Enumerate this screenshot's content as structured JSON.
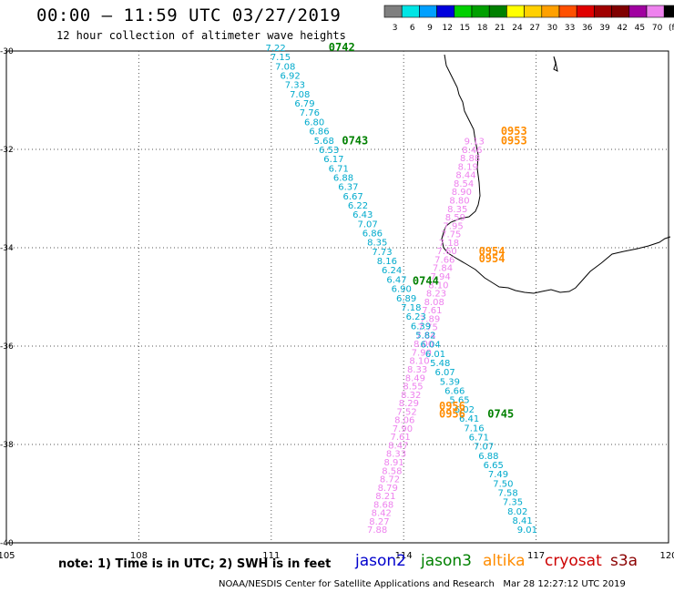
{
  "title": "00:00 — 11:59 UTC 03/27/2019",
  "subtitle": "12 hour collection of altimeter wave heights",
  "note": "note: 1) Time is in UTC; 2) SWH is in feet",
  "footer": "NOAA/NESDIS Center for Satellite Applications and Research   Mar 28 12:27:12 UTC 2019",
  "legend": {
    "labels": [
      "3",
      "6",
      "9",
      "12",
      "15",
      "18",
      "21",
      "24",
      "27",
      "30",
      "33",
      "36",
      "39",
      "42",
      "45",
      "70",
      "(ft)"
    ],
    "colors": [
      "#7f7f7f",
      "#00e5e5",
      "#00a0ff",
      "#0000dd",
      "#00d000",
      "#00a000",
      "#008000",
      "#ffff00",
      "#ffd000",
      "#ffa000",
      "#ff5000",
      "#e00000",
      "#a00000",
      "#800000",
      "#a000a0",
      "#ee82ee",
      "#000000"
    ]
  },
  "axes": {
    "lon_ticks": [
      "105",
      "108",
      "111",
      "114",
      "117",
      "120"
    ],
    "lat_ticks": [
      "-30",
      "-32",
      "-34",
      "-36",
      "-38",
      "-40"
    ]
  },
  "missions": [
    {
      "name": "jason2",
      "color": "#0000cc"
    },
    {
      "name": "jason3",
      "color": "#008000"
    },
    {
      "name": "altika",
      "color": "#ff8c00"
    },
    {
      "name": "cryosat",
      "color": "#cc0000"
    },
    {
      "name": "s3a",
      "color": "#8b0000"
    }
  ],
  "colors": {
    "jason3_track": "#00aacc",
    "s3a_track": "#ee82ee",
    "jason3_time": "#008000",
    "altika_time": "#ff8c00",
    "grid": "#555555",
    "coast": "#000000"
  },
  "jason3_track": {
    "start": [
      111.1,
      -30.0
    ],
    "end": [
      116.8,
      -39.8
    ],
    "values": [
      "7.22",
      "7.15",
      "7.08",
      "6.92",
      "7.33",
      "7.08",
      "6.79",
      "7.76",
      "6.80",
      "6.86",
      "5.68",
      "6.53",
      "6.17",
      "6.71",
      "6.88",
      "6.37",
      "6.67",
      "6.22",
      "6.43",
      "7.07",
      "6.86",
      "8.35",
      "7.73",
      "8.16",
      "6.24",
      "6.47",
      "6.90",
      "6.89",
      "7.18",
      "6.23",
      "6.39",
      "5.82",
      "6.04",
      "6.01",
      "5.48",
      "6.07",
      "5.39",
      "6.66",
      "5.65",
      "6.02",
      "6.41",
      "7.16",
      "6.71",
      "7.07",
      "6.88",
      "6.65",
      "7.49",
      "7.50",
      "7.58",
      "7.35",
      "8.02",
      "8.41",
      "9.01"
    ]
  },
  "s3a_track": {
    "start": [
      115.6,
      -31.9
    ],
    "end": [
      113.4,
      -39.8
    ],
    "values": [
      "9.13",
      "8.46",
      "8.88",
      "8.19",
      "8.44",
      "8.54",
      "8.90",
      "8.80",
      "8.35",
      "8.59",
      "7.95",
      "7.75",
      "7.18",
      "7.60",
      "7.66",
      "7.84",
      "7.94",
      "8.10",
      "8.23",
      "8.08",
      "7.61",
      "7.89",
      "7.75",
      "7.64",
      "8.00",
      "7.90",
      "8.10",
      "8.33",
      "8.49",
      "8.55",
      "8.32",
      "8.29",
      "7.52",
      "8.06",
      "7.90",
      "7.61",
      "8.47",
      "8.33",
      "8.91",
      "8.58",
      "8.72",
      "8.79",
      "8.21",
      "8.68",
      "8.42",
      "8.27",
      "7.88"
    ]
  },
  "time_labels": [
    {
      "text": "0742",
      "lon": 112.3,
      "lat": -30.0,
      "color": "jason3_time"
    },
    {
      "text": "0743",
      "lon": 112.6,
      "lat": -31.9,
      "color": "jason3_time"
    },
    {
      "text": "0744",
      "lon": 114.2,
      "lat": -34.75,
      "color": "jason3_time"
    },
    {
      "text": "0745",
      "lon": 115.9,
      "lat": -37.45,
      "color": "jason3_time"
    },
    {
      "text": "0953",
      "lon": 116.2,
      "lat": -31.7,
      "color": "altika_time"
    },
    {
      "text": "0953",
      "lon": 116.2,
      "lat": -31.9,
      "color": "altika_time"
    },
    {
      "text": "0954",
      "lon": 115.7,
      "lat": -34.15,
      "color": "altika_time"
    },
    {
      "text": "0954",
      "lon": 115.7,
      "lat": -34.3,
      "color": "altika_time"
    },
    {
      "text": "0956",
      "lon": 114.8,
      "lat": -37.3,
      "color": "altika_time"
    },
    {
      "text": "0956",
      "lon": 114.8,
      "lat": -37.45,
      "color": "altika_time"
    }
  ]
}
